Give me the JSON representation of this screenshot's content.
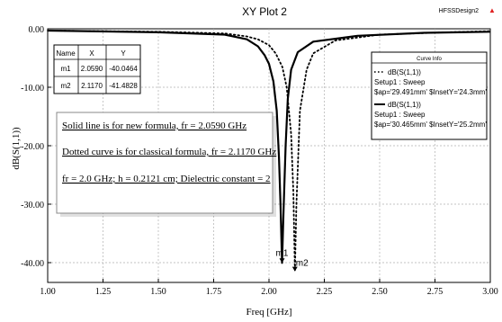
{
  "header": {
    "title": "XY Plot 2",
    "design": "HFSSDesign2",
    "logo_mark": "▲"
  },
  "chart_data": {
    "type": "line",
    "xlabel": "Freq [GHz]",
    "ylabel": "dB(S(1,1))",
    "xlim": [
      1.0,
      3.0
    ],
    "ylim": [
      -45,
      0
    ],
    "x_ticks": [
      "1.00",
      "1.25",
      "1.50",
      "1.75",
      "2.00",
      "2.25",
      "2.50",
      "2.75",
      "3.00"
    ],
    "y_ticks": [
      "0.00",
      "-10.00",
      "-20.00",
      "-30.00",
      "-40.00"
    ],
    "grid": true,
    "series": [
      {
        "name": "dB(S(1,1))",
        "setup": "Setup1 : Sweep",
        "params": "$ap='29.491mm' $InsetY='24.3mm'",
        "style": "dotted",
        "color": "#000000",
        "x": [
          1.0,
          1.5,
          1.8,
          1.9,
          1.95,
          2.0,
          2.03,
          2.06,
          2.08,
          2.1,
          2.11,
          2.117,
          2.124,
          2.14,
          2.17,
          2.2,
          2.3,
          2.5,
          2.8,
          3.0
        ],
        "y": [
          -0.3,
          -0.5,
          -0.8,
          -1.3,
          -1.8,
          -2.8,
          -4.2,
          -6.5,
          -10.0,
          -18.0,
          -28.0,
          -41.48,
          -30.0,
          -14.0,
          -7.0,
          -4.2,
          -2.0,
          -1.0,
          -0.6,
          -0.4
        ]
      },
      {
        "name": "dB(S(1,1))",
        "setup": "Setup1 : Sweep",
        "params": "$ap='30.465mm' $InsetY='25.2mm'",
        "style": "solid",
        "color": "#000000",
        "x": [
          1.0,
          1.5,
          1.8,
          1.9,
          1.95,
          1.98,
          2.0,
          2.02,
          2.035,
          2.045,
          2.052,
          2.059,
          2.066,
          2.075,
          2.085,
          2.1,
          2.13,
          2.2,
          2.4,
          2.7,
          3.0
        ],
        "y": [
          -0.3,
          -0.6,
          -1.0,
          -1.8,
          -3.0,
          -4.5,
          -6.0,
          -9.0,
          -14.0,
          -22.0,
          -30.0,
          -40.05,
          -31.0,
          -20.0,
          -12.0,
          -7.0,
          -4.0,
          -2.2,
          -1.2,
          -0.7,
          -0.5
        ]
      }
    ],
    "markers": {
      "headers": [
        "Name",
        "X",
        "Y"
      ],
      "rows": [
        [
          "m1",
          "2.0590",
          "-40.0464"
        ],
        [
          "m2",
          "2.1170",
          "-41.4828"
        ]
      ],
      "points": [
        {
          "label": "m1",
          "x": 2.059,
          "y": -40.0464
        },
        {
          "label": "m2",
          "x": 2.117,
          "y": -41.4828
        }
      ]
    },
    "legend": {
      "title": "Curve Info",
      "placement": "top-right"
    },
    "annotations": [
      "Solid line is for new formula, fr = 2.0590 GHz",
      "Dotted curve is for classical formula, fr = 2.1170 GHz",
      "fr = 2.0 GHz; h = 0.2121 cm; Dielectric constant = 2"
    ]
  }
}
